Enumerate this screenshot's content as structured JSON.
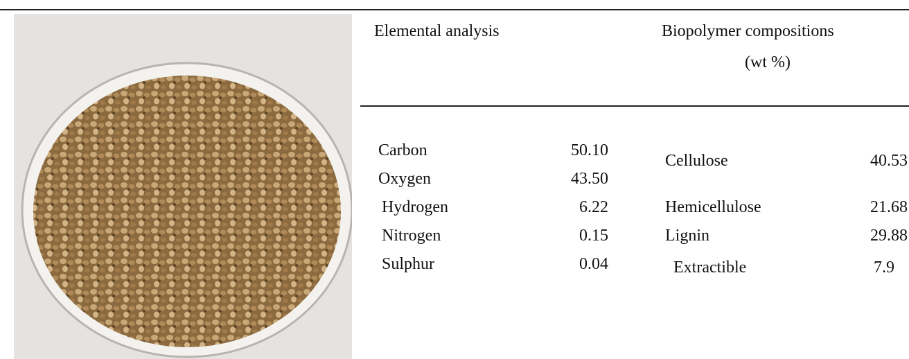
{
  "table": {
    "elemental": {
      "header": "Elemental analysis",
      "rows": [
        [
          "Carbon",
          "50.10"
        ],
        [
          "Oxygen",
          "43.50"
        ],
        [
          "Hydrogen",
          "6.22"
        ],
        [
          "Nitrogen",
          "0.15"
        ],
        [
          "Sulphur",
          "0.04"
        ]
      ]
    },
    "biopolymer": {
      "header": "Biopolymer compositions",
      "unit": "(wt %)",
      "rows": [
        [
          "Cellulose",
          "40.53"
        ],
        [
          "Hemicellulose",
          "21.68"
        ],
        [
          "Lignin",
          "29.88"
        ],
        [
          "Extractible",
          "7.9"
        ]
      ]
    }
  }
}
